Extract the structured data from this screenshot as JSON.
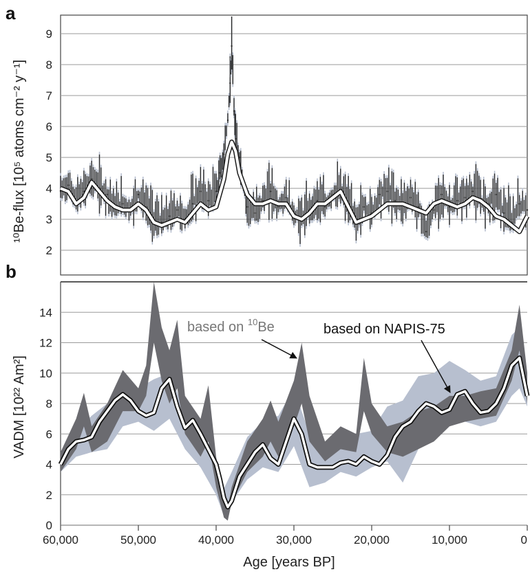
{
  "chart_data": [
    {
      "panel": "a",
      "type": "line",
      "xlabel": "",
      "ylabel": "¹⁰Be-flux [10⁵ atoms cm⁻² y⁻¹]",
      "ylim": [
        1.2,
        9.6
      ],
      "yticks": [
        "2",
        "3",
        "4",
        "5",
        "6",
        "7",
        "8",
        "9"
      ],
      "xlim": [
        60000,
        0
      ],
      "grid": "horizontal",
      "series": [
        {
          "role": "raw-flux",
          "x": [
            60000,
            59000,
            58000,
            57000,
            56000,
            55000,
            54000,
            53000,
            52000,
            51000,
            50000,
            49000,
            48000,
            47000,
            46000,
            45000,
            44000,
            43000,
            42000,
            41000,
            40000,
            39500,
            39000,
            38500,
            38200,
            38000,
            37700,
            37500,
            37000,
            36500,
            36000,
            35000,
            34000,
            33000,
            32000,
            31000,
            30000,
            29000,
            28000,
            27000,
            26000,
            25000,
            24000,
            23000,
            22000,
            21000,
            20000,
            19000,
            18000,
            17000,
            16000,
            15000,
            14000,
            13000,
            12000,
            11000,
            10000,
            9000,
            8000,
            7000,
            6000,
            5000,
            4000,
            3000,
            2000,
            1000,
            0
          ],
          "y": [
            3.9,
            4.1,
            3.6,
            3.9,
            4.3,
            4.0,
            3.8,
            3.4,
            3.5,
            3.3,
            3.8,
            3.4,
            3.0,
            2.9,
            3.1,
            3.3,
            3.0,
            3.5,
            3.9,
            3.6,
            3.9,
            4.5,
            5.1,
            6.2,
            7.4,
            8.6,
            6.5,
            5.6,
            5.0,
            4.1,
            3.4,
            3.2,
            3.6,
            3.9,
            3.4,
            3.7,
            3.1,
            3.0,
            3.3,
            3.6,
            3.4,
            3.8,
            3.9,
            3.5,
            2.9,
            3.4,
            3.2,
            3.8,
            3.9,
            3.6,
            3.5,
            3.7,
            3.4,
            2.6,
            3.3,
            3.8,
            3.4,
            3.6,
            3.7,
            3.9,
            3.6,
            3.5,
            3.8,
            3.2,
            2.9,
            3.5,
            3.3
          ]
        },
        {
          "role": "smoothed",
          "x": [
            60000,
            59000,
            58000,
            57000,
            56000,
            55000,
            54000,
            53000,
            52000,
            51000,
            50000,
            49000,
            48000,
            47000,
            46000,
            45000,
            44000,
            43000,
            42000,
            41000,
            40000,
            39000,
            38500,
            38000,
            37500,
            37000,
            36000,
            35000,
            34000,
            33000,
            32000,
            31000,
            30000,
            29000,
            28000,
            27000,
            26000,
            25000,
            24000,
            23000,
            22000,
            21000,
            20000,
            19000,
            18000,
            17000,
            16000,
            15000,
            14000,
            13000,
            12000,
            11000,
            10000,
            9000,
            8000,
            7000,
            6000,
            5000,
            4000,
            3000,
            2000,
            1000,
            0
          ],
          "y": [
            4.0,
            3.9,
            3.5,
            3.7,
            4.2,
            3.9,
            3.6,
            3.4,
            3.3,
            3.3,
            3.5,
            3.3,
            2.9,
            2.8,
            2.9,
            3.0,
            2.9,
            3.2,
            3.5,
            3.3,
            3.4,
            4.3,
            5.1,
            5.5,
            5.2,
            4.5,
            3.8,
            3.5,
            3.5,
            3.6,
            3.5,
            3.5,
            3.1,
            3.0,
            3.2,
            3.5,
            3.5,
            3.7,
            3.9,
            3.4,
            2.9,
            3.0,
            3.1,
            3.3,
            3.5,
            3.5,
            3.5,
            3.4,
            3.3,
            3.2,
            3.5,
            3.6,
            3.5,
            3.4,
            3.5,
            3.7,
            3.6,
            3.4,
            3.1,
            3.0,
            2.8,
            2.6,
            3.1
          ]
        }
      ]
    },
    {
      "panel": "b",
      "type": "area",
      "xlabel": "Age [years BP]",
      "ylabel": "VADM [10²² Am²]",
      "ylim": [
        0,
        16
      ],
      "yticks": [
        "0",
        "2",
        "4",
        "6",
        "8",
        "10",
        "12",
        "14"
      ],
      "xlim": [
        60000,
        0
      ],
      "xticks": [
        "60,000",
        "50,000",
        "40,000",
        "30,000",
        "20,000",
        "10,000",
        "0"
      ],
      "grid": "horizontal",
      "series": [
        {
          "name": "based on NAPIS-75",
          "role": "light-band",
          "x": [
            60000,
            58000,
            56000,
            54000,
            52000,
            50000,
            48000,
            46000,
            44000,
            42000,
            40000,
            39000,
            38000,
            36000,
            34000,
            32000,
            30000,
            28000,
            26000,
            24000,
            22000,
            20000,
            18000,
            16000,
            14000,
            12000,
            10000,
            8000,
            6000,
            4000,
            2000,
            1000,
            0
          ],
          "lower": [
            3.5,
            4.5,
            4.8,
            5.0,
            6.5,
            6.8,
            6.2,
            7.0,
            5.0,
            3.8,
            2.0,
            0.6,
            1.5,
            3.0,
            3.8,
            3.5,
            5.2,
            2.5,
            2.8,
            3.5,
            3.2,
            3.8,
            4.2,
            2.8,
            5.0,
            6.5,
            6.8,
            6.8,
            6.5,
            6.8,
            8.5,
            9.0,
            7.8
          ],
          "upper": [
            4.8,
            6.2,
            7.2,
            8.0,
            9.5,
            9.0,
            9.6,
            10.0,
            7.5,
            6.5,
            4.2,
            2.4,
            3.5,
            5.8,
            6.8,
            7.2,
            9.0,
            6.0,
            5.5,
            6.2,
            6.0,
            6.2,
            7.8,
            8.2,
            9.8,
            10.0,
            10.8,
            10.2,
            9.5,
            9.8,
            12.5,
            13.0,
            10.0
          ]
        },
        {
          "name": "based on ¹⁰Be",
          "role": "dark-band",
          "x": [
            60000,
            58000,
            57000,
            56000,
            54000,
            52000,
            50000,
            49000,
            48000,
            47000,
            46000,
            45000,
            44000,
            42000,
            41000,
            40000,
            39000,
            38500,
            38000,
            36000,
            34000,
            33000,
            32000,
            30000,
            29000,
            28000,
            26000,
            24000,
            22000,
            21000,
            20000,
            18000,
            16000,
            14000,
            12000,
            10000,
            8000,
            6000,
            4000,
            2000,
            1000,
            0
          ],
          "lower": [
            3.5,
            5.0,
            6.5,
            4.8,
            5.5,
            7.5,
            7.5,
            8.5,
            12.0,
            9.5,
            8.0,
            9.0,
            6.0,
            4.5,
            5.5,
            2.5,
            0.5,
            0.3,
            1.5,
            3.5,
            4.5,
            5.5,
            4.5,
            6.5,
            8.0,
            5.5,
            4.2,
            5.0,
            4.8,
            7.5,
            6.0,
            4.8,
            4.5,
            5.0,
            5.5,
            6.5,
            6.8,
            7.0,
            7.2,
            9.5,
            11.5,
            8.0
          ],
          "upper": [
            4.8,
            7.0,
            8.7,
            6.5,
            8.0,
            10.2,
            9.0,
            10.5,
            16.0,
            13.0,
            11.5,
            13.5,
            8.5,
            7.0,
            9.2,
            4.5,
            1.5,
            1.2,
            2.5,
            5.5,
            7.0,
            8.2,
            6.8,
            9.5,
            12.0,
            8.5,
            5.5,
            6.5,
            6.0,
            11.0,
            8.0,
            6.5,
            6.8,
            7.5,
            7.8,
            8.5,
            8.5,
            8.8,
            9.0,
            11.5,
            14.5,
            10.0
          ]
        },
        {
          "role": "mean-curve",
          "x": [
            60000,
            59000,
            58000,
            57000,
            56000,
            55000,
            54000,
            53000,
            52000,
            51000,
            50000,
            49000,
            48000,
            47000,
            46000,
            45000,
            44000,
            43000,
            42000,
            41000,
            40000,
            39500,
            39000,
            38500,
            38000,
            37000,
            36000,
            35000,
            34000,
            33000,
            32000,
            31000,
            30000,
            29000,
            28000,
            27000,
            26000,
            25000,
            24000,
            23000,
            22000,
            21000,
            20000,
            19000,
            18000,
            17000,
            16000,
            15000,
            14000,
            13000,
            12000,
            11000,
            10000,
            9000,
            8000,
            7000,
            6000,
            5000,
            4000,
            3000,
            2000,
            1000,
            0
          ],
          "y": [
            4.0,
            5.0,
            5.5,
            5.6,
            5.8,
            6.8,
            7.5,
            8.2,
            8.6,
            8.2,
            7.5,
            7.2,
            7.4,
            9.0,
            9.6,
            7.8,
            6.4,
            6.9,
            6.0,
            5.0,
            4.0,
            3.0,
            1.8,
            1.2,
            1.6,
            3.2,
            4.0,
            4.8,
            5.3,
            4.4,
            4.0,
            5.5,
            7.0,
            6.0,
            4.0,
            3.8,
            3.8,
            3.8,
            4.1,
            4.2,
            4.0,
            4.5,
            4.2,
            4.0,
            4.6,
            5.8,
            6.5,
            6.8,
            7.5,
            8.0,
            7.8,
            7.4,
            7.6,
            8.6,
            8.8,
            8.0,
            7.4,
            7.5,
            8.0,
            9.0,
            10.5,
            11.0,
            8.5
          ]
        }
      ],
      "annotations": [
        {
          "text": "based on ",
          "sup": "10",
          "tail": "Be"
        },
        {
          "text": "based on NAPIS-75"
        }
      ]
    }
  ],
  "panels": {
    "a": "a",
    "b": "b"
  },
  "colors": {
    "dark": "#2b2b2b",
    "light_band": "#b7bfcf",
    "dark_band": "#6b6b70",
    "smooth": "#ffffff"
  }
}
